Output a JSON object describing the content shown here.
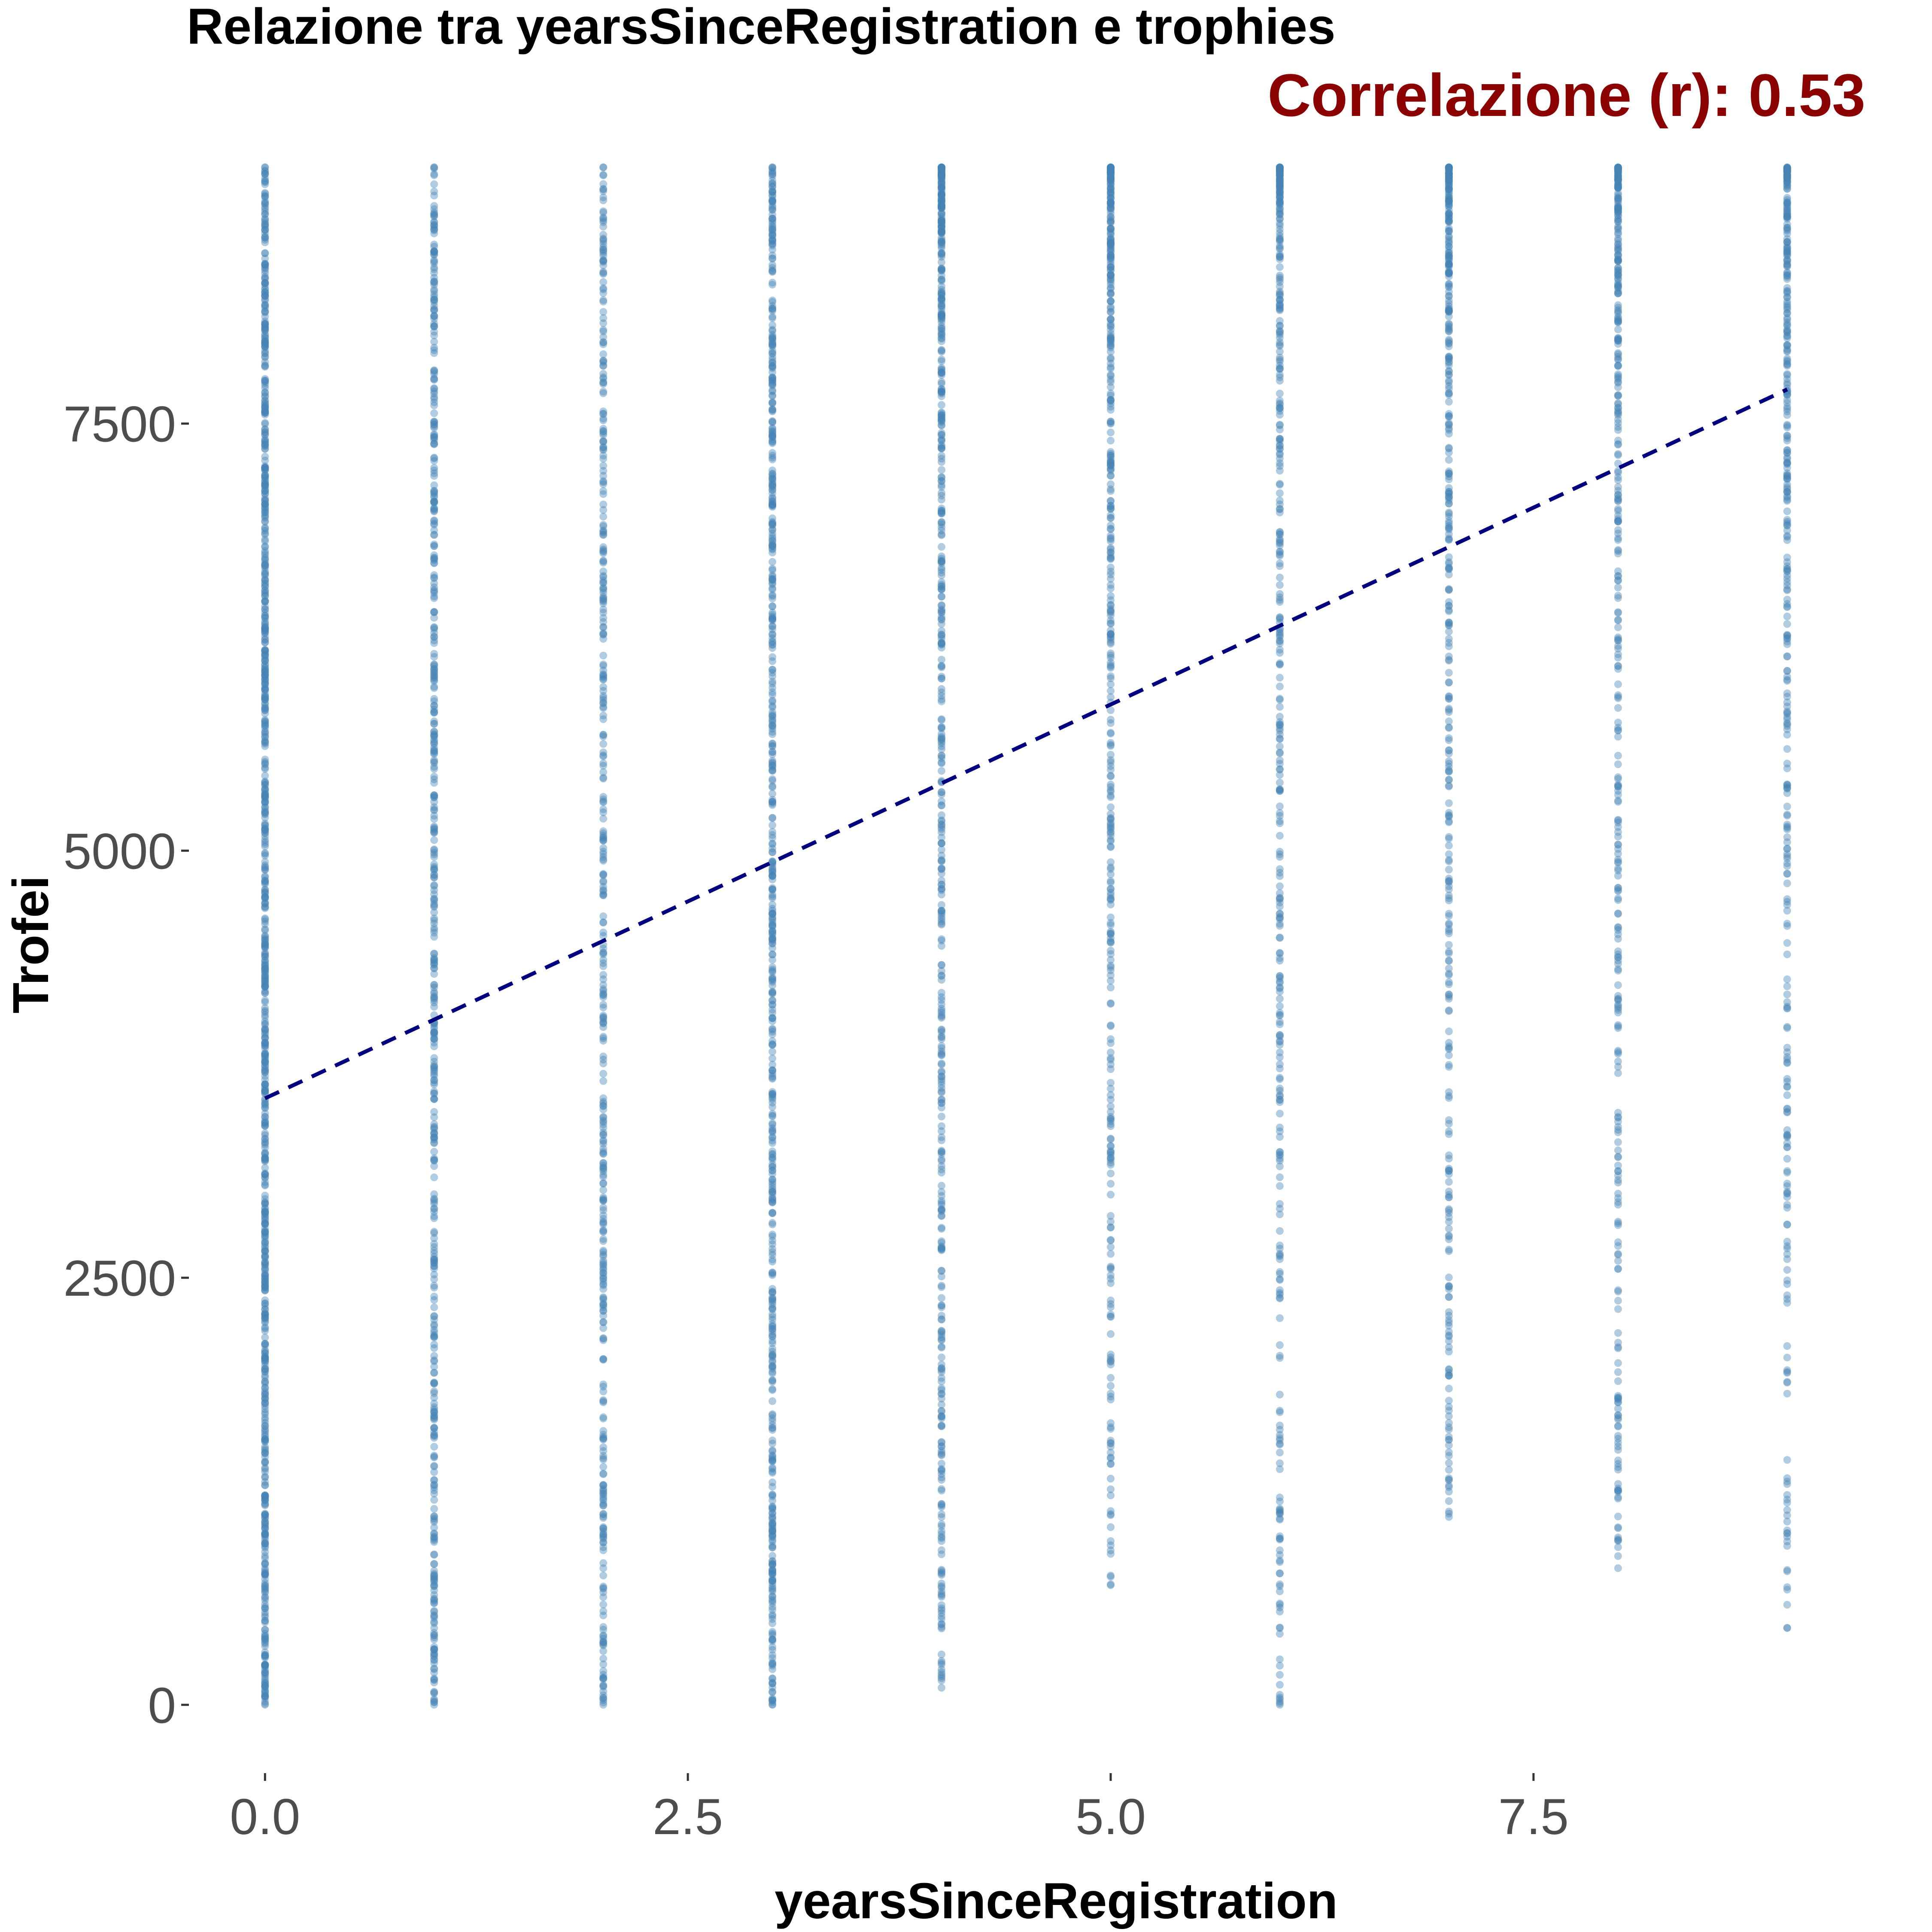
{
  "chart_data": {
    "type": "scatter",
    "title": "Relazione tra yearsSinceRegistration e trophies",
    "subtitle": "Correlazione (r): 0.53",
    "xlabel": "yearsSinceRegistration",
    "ylabel": "Trofei",
    "xlim": [
      -0.45,
      9.45
    ],
    "ylim": [
      -400,
      9100
    ],
    "x_ticks": [
      0.0,
      2.5,
      5.0,
      7.5
    ],
    "x_tick_labels": [
      "0.0",
      "2.5",
      "5.0",
      "7.5"
    ],
    "y_ticks": [
      0,
      2500,
      5000,
      7500
    ],
    "y_tick_labels": [
      "0",
      "2500",
      "5000",
      "7500"
    ],
    "grid": false,
    "point_columns": [
      {
        "x": 0,
        "min": 0,
        "max": 9000,
        "count": 900,
        "pattern": "dense"
      },
      {
        "x": 1,
        "min": 0,
        "max": 9000,
        "count": 520,
        "pattern": "even"
      },
      {
        "x": 2,
        "min": 0,
        "max": 9000,
        "count": 420,
        "pattern": "even"
      },
      {
        "x": 3,
        "min": 0,
        "max": 9000,
        "count": 620,
        "pattern": "even"
      },
      {
        "x": 4,
        "min": 100,
        "max": 9000,
        "count": 560,
        "pattern": "upper"
      },
      {
        "x": 5,
        "min": 700,
        "max": 9000,
        "count": 430,
        "pattern": "upper"
      },
      {
        "x": 6,
        "min": 0,
        "max": 9000,
        "count": 380,
        "pattern": "upper"
      },
      {
        "x": 7,
        "min": 1100,
        "max": 9000,
        "count": 390,
        "pattern": "upper"
      },
      {
        "x": 8,
        "min": 800,
        "max": 9000,
        "count": 380,
        "pattern": "upper"
      },
      {
        "x": 9,
        "min": 450,
        "max": 9000,
        "count": 360,
        "pattern": "upper"
      }
    ],
    "trend_line": {
      "x": [
        0,
        9
      ],
      "y": [
        3550,
        7700
      ],
      "style": "dashed"
    },
    "colors": {
      "points": "#4682b4",
      "trend": "#00007f",
      "subtitle": "#8b0000",
      "tick_labels": "#4d4d4d",
      "tick_marks": "#333333"
    }
  }
}
